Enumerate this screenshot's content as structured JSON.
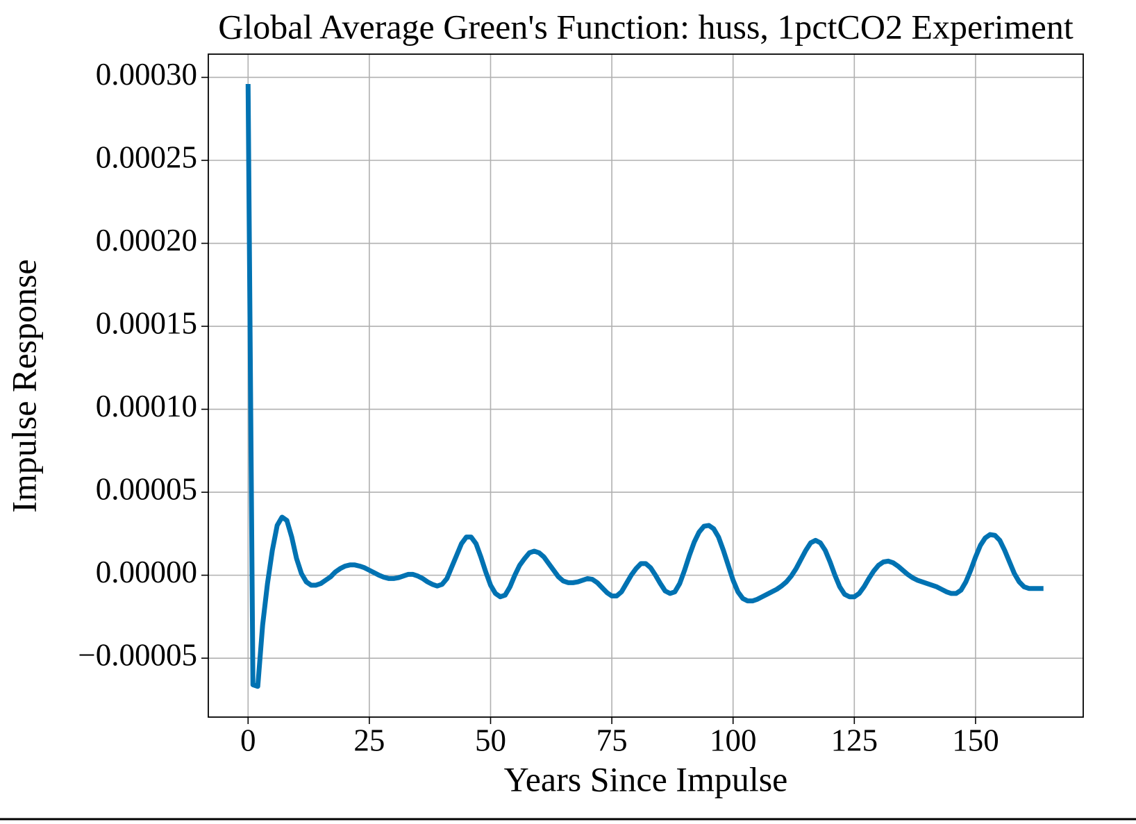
{
  "chart_data": {
    "type": "line",
    "title": "Global Average Green's Function: huss, 1pctCO2 Experiment",
    "x_label": "Years Since Impulse",
    "y_label": "Impulse Response",
    "grid": true,
    "xlim": [
      -8.2,
      172.2
    ],
    "ylim": [
      -8.55e-05,
      0.000314
    ],
    "xticks": [
      0,
      25,
      50,
      75,
      100,
      125,
      150
    ],
    "yticks": [
      {
        "value": -5e-05,
        "label": "−0.00005"
      },
      {
        "value": 0,
        "label": "0.00000"
      },
      {
        "value": 5e-05,
        "label": "0.00005"
      },
      {
        "value": 0.0001,
        "label": "0.00010"
      },
      {
        "value": 0.00015,
        "label": "0.00015"
      },
      {
        "value": 0.0002,
        "label": "0.00020"
      },
      {
        "value": 0.00025,
        "label": "0.00025"
      },
      {
        "value": 0.0003,
        "label": "0.00030"
      }
    ],
    "x": [
      0,
      1,
      2,
      3,
      4,
      5,
      6,
      7,
      8,
      9,
      10,
      11,
      12,
      13,
      14,
      15,
      16,
      17,
      18,
      19,
      20,
      21,
      22,
      23,
      24,
      25,
      26,
      27,
      28,
      29,
      30,
      31,
      32,
      33,
      34,
      35,
      36,
      37,
      38,
      39,
      40,
      41,
      42,
      43,
      44,
      45,
      46,
      47,
      48,
      49,
      50,
      51,
      52,
      53,
      54,
      55,
      56,
      57,
      58,
      59,
      60,
      61,
      62,
      63,
      64,
      65,
      66,
      67,
      68,
      69,
      70,
      71,
      72,
      73,
      74,
      75,
      76,
      77,
      78,
      79,
      80,
      81,
      82,
      83,
      84,
      85,
      86,
      87,
      88,
      89,
      90,
      91,
      92,
      93,
      94,
      95,
      96,
      97,
      98,
      99,
      100,
      101,
      102,
      103,
      104,
      105,
      106,
      107,
      108,
      109,
      110,
      111,
      112,
      113,
      114,
      115,
      116,
      117,
      118,
      119,
      120,
      121,
      122,
      123,
      124,
      125,
      126,
      127,
      128,
      129,
      130,
      131,
      132,
      133,
      134,
      135,
      136,
      137,
      138,
      139,
      140,
      141,
      142,
      143,
      144,
      145,
      146,
      147,
      148,
      149,
      150,
      151,
      152,
      153,
      154,
      155,
      156,
      157,
      158,
      159,
      160,
      161,
      162,
      163,
      164
    ],
    "series": [
      {
        "color": "#0072b2",
        "values": [
          0.000296,
          -6.6e-05,
          -6.7e-05,
          -3e-05,
          -5e-06,
          1.5e-05,
          3e-05,
          3.5e-05,
          3.3e-05,
          2.3e-05,
          1e-05,
          1e-06,
          -4e-06,
          -6e-06,
          -6e-06,
          -5e-06,
          -3e-06,
          -1e-06,
          2e-06,
          4e-06,
          5.5e-06,
          6.2e-06,
          6.2e-06,
          5.5e-06,
          4.5e-06,
          3e-06,
          1.5e-06,
          0.0,
          -1.2e-06,
          -2e-06,
          -2e-06,
          -1.5e-06,
          -5e-07,
          5e-07,
          5e-07,
          -5e-07,
          -2e-06,
          -4e-06,
          -5.5e-06,
          -6.5e-06,
          -5.5e-06,
          -2e-06,
          5e-06,
          1.2e-05,
          1.9e-05,
          2.3e-05,
          2.3e-05,
          1.9e-05,
          1.1e-05,
          2e-06,
          -6e-06,
          -1.1e-05,
          -1.3e-05,
          -1.2e-05,
          -7e-06,
          0.0,
          6e-06,
          1e-05,
          1.35e-05,
          1.45e-05,
          1.35e-05,
          1.1e-05,
          7e-06,
          3e-06,
          -1e-06,
          -3.5e-06,
          -4.5e-06,
          -4.5e-06,
          -4e-06,
          -3e-06,
          -2e-06,
          -2.5e-06,
          -4.5e-06,
          -7.5e-06,
          -1.05e-05,
          -1.25e-05,
          -1.25e-05,
          -1e-05,
          -5e-06,
          0.0,
          4e-06,
          7e-06,
          7e-06,
          4.5e-06,
          0.0,
          -5e-06,
          -9.5e-06,
          -1.1e-05,
          -1e-05,
          -5e-06,
          3e-06,
          1.2e-05,
          2e-05,
          2.6e-05,
          2.95e-05,
          3e-05,
          2.8e-05,
          2.3e-05,
          1.5e-05,
          6e-06,
          -3e-06,
          -1e-05,
          -1.4e-05,
          -1.55e-05,
          -1.55e-05,
          -1.45e-05,
          -1.3e-05,
          -1.15e-05,
          -1e-05,
          -8.5e-06,
          -6.5e-06,
          -4e-06,
          -5e-07,
          4e-06,
          9.5e-06,
          1.5e-05,
          1.95e-05,
          2.1e-05,
          1.95e-05,
          1.5e-05,
          8e-06,
          0.0,
          -7e-06,
          -1.15e-05,
          -1.3e-05,
          -1.3e-05,
          -1.1e-05,
          -7e-06,
          -2e-06,
          2.5e-06,
          6e-06,
          8e-06,
          8.5e-06,
          7.5e-06,
          5.5e-06,
          3e-06,
          5e-07,
          -1.5e-06,
          -3e-06,
          -4e-06,
          -5e-06,
          -6e-06,
          -7e-06,
          -8.5e-06,
          -1e-05,
          -1.1e-05,
          -1.1e-05,
          -9e-06,
          -4e-06,
          3e-06,
          1.1e-05,
          1.8e-05,
          2.25e-05,
          2.45e-05,
          2.4e-05,
          2.1e-05,
          1.5e-05,
          8e-06,
          1e-06,
          -4e-06,
          -7e-06,
          -8e-06,
          -8e-06,
          -8e-06,
          -8e-06
        ]
      }
    ]
  }
}
